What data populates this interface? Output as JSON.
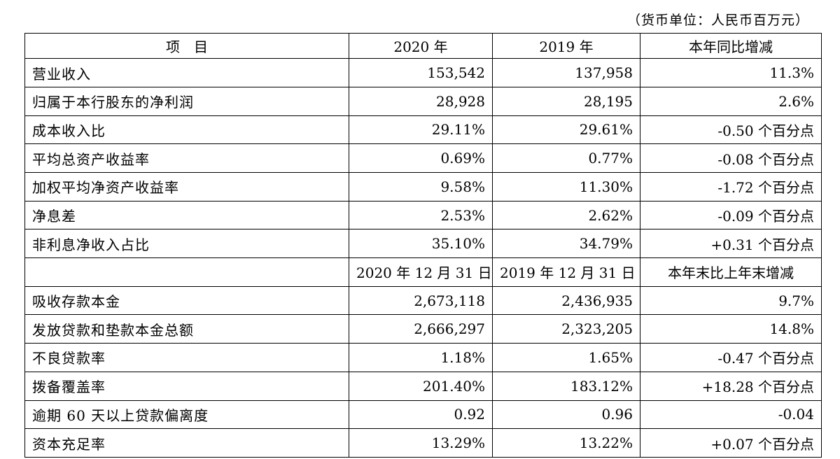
{
  "unit_note": "（货币单位：人民币百万元）",
  "header1": [
    "项　目",
    "2020 年",
    "2019 年",
    "本年同比增减"
  ],
  "rows1": [
    [
      "营业收入",
      "153,542",
      "137,958",
      "11.3%"
    ],
    [
      "归属于本行股东的净利润",
      "28,928",
      "28,195",
      "2.6%"
    ],
    [
      "成本收入比",
      "29.11%",
      "29.61%",
      "-0.50 个百分点"
    ],
    [
      "平均总资产收益率",
      "0.69%",
      "0.77%",
      "-0.08 个百分点"
    ],
    [
      "加权平均净资产收益率",
      "9.58%",
      "11.30%",
      "-1.72 个百分点"
    ],
    [
      "净息差",
      "2.53%",
      "2.62%",
      "-0.09 个百分点"
    ],
    [
      "非利息净收入占比",
      "35.10%",
      "34.79%",
      "+0.31 个百分点"
    ]
  ],
  "header2": [
    "",
    "2020 年 12 月 31 日",
    "2019 年 12 月 31 日",
    "本年末比上年末增减"
  ],
  "rows2": [
    [
      "吸收存款本金",
      "2,673,118",
      "2,436,935",
      "9.7%"
    ],
    [
      "发放贷款和垫款本金总额",
      "2,666,297",
      "2,323,205",
      "14.8%"
    ],
    [
      "不良贷款率",
      "1.18%",
      "1.65%",
      "-0.47 个百分点"
    ],
    [
      "拨备覆盖率",
      "201.40%",
      "183.12%",
      "+18.28 个百分点"
    ],
    [
      "逾期 60 天以上贷款偏离度",
      "0.92",
      "0.96",
      "-0.04"
    ],
    [
      "资本充足率",
      "13.29%",
      "13.22%",
      "+0.07 个百分点"
    ]
  ]
}
